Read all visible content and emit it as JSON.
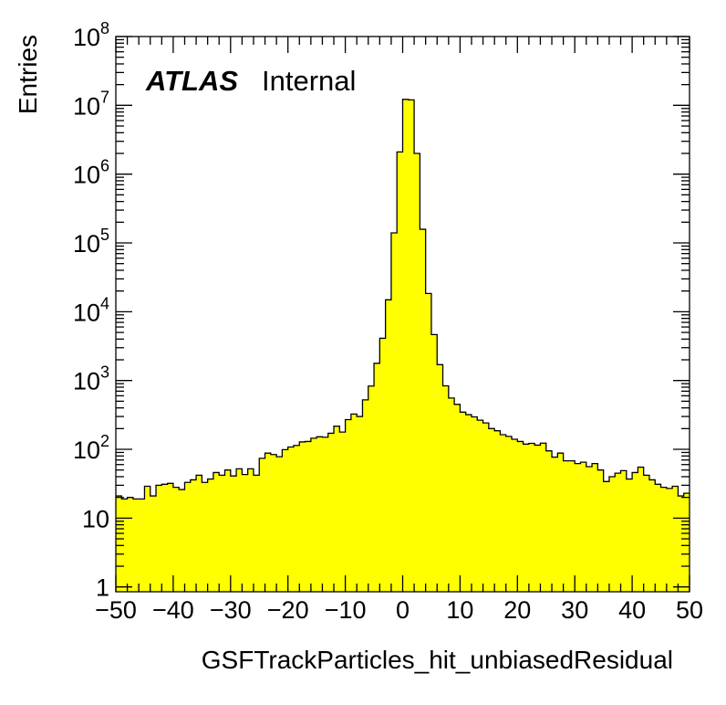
{
  "chart_data": {
    "type": "histogram",
    "title": "",
    "xlabel": "GSFTrackParticles_hit_unbiasedResidual",
    "ylabel": "Entries",
    "xlim": [
      -50,
      50
    ],
    "ylim": [
      0.85,
      100000000
    ],
    "y_scale": "log",
    "bin_width": 1,
    "fill_color": "#ffff00",
    "line_color": "#000000",
    "grid": false,
    "x_ticks": [
      {
        "value": -50,
        "label": "−50"
      },
      {
        "value": -40,
        "label": "−40"
      },
      {
        "value": -30,
        "label": "−30"
      },
      {
        "value": -20,
        "label": "−20"
      },
      {
        "value": -10,
        "label": "−10"
      },
      {
        "value": 0,
        "label": "0"
      },
      {
        "value": 10,
        "label": "10"
      },
      {
        "value": 20,
        "label": "20"
      },
      {
        "value": 30,
        "label": "30"
      },
      {
        "value": 40,
        "label": "40"
      },
      {
        "value": 50,
        "label": "50"
      }
    ],
    "y_ticks": [
      {
        "value": 1,
        "base": "1",
        "exp": ""
      },
      {
        "value": 10,
        "base": "10",
        "exp": ""
      },
      {
        "value": 100,
        "base": "10",
        "exp": "2"
      },
      {
        "value": 1000,
        "base": "10",
        "exp": "3"
      },
      {
        "value": 10000,
        "base": "10",
        "exp": "4"
      },
      {
        "value": 100000,
        "base": "10",
        "exp": "5"
      },
      {
        "value": 1000000,
        "base": "10",
        "exp": "6"
      },
      {
        "value": 10000000,
        "base": "10",
        "exp": "7"
      },
      {
        "value": 100000000,
        "base": "10",
        "exp": "8"
      }
    ],
    "bin_edges_start": -50,
    "values": [
      21,
      19,
      20,
      19,
      19,
      29,
      21,
      30,
      31,
      32,
      28,
      26,
      33,
      36,
      42,
      33,
      37,
      46,
      42,
      50,
      41,
      52,
      43,
      52,
      42,
      74,
      88,
      84,
      78,
      99,
      108,
      114,
      128,
      130,
      145,
      152,
      150,
      171,
      217,
      178,
      270,
      326,
      300,
      523,
      830,
      1780,
      4110,
      14900,
      140000,
      2100000,
      12200000,
      12000000,
      2000000,
      158000,
      18400,
      4650,
      1700,
      837,
      556,
      450,
      347,
      319,
      296,
      265,
      242,
      200,
      186,
      163,
      154,
      140,
      130,
      119,
      122,
      115,
      123,
      95,
      77,
      88,
      68,
      68,
      62,
      65,
      56,
      62,
      50,
      34,
      40,
      45,
      49,
      37,
      46,
      55,
      42,
      36,
      31,
      28,
      27,
      29,
      21,
      23
    ],
    "annotations": [
      {
        "bold_italic": "ATLAS",
        "text": "Internal"
      }
    ]
  }
}
